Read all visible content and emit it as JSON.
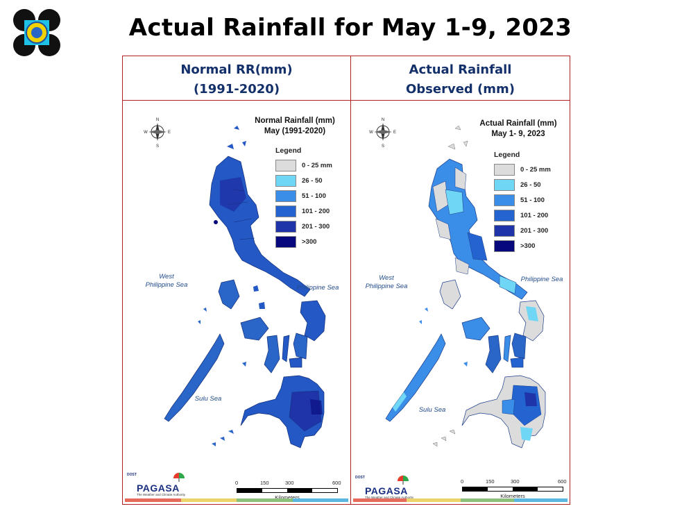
{
  "header": {
    "title": "Actual Rainfall for May 1-9, 2023"
  },
  "legend": {
    "title": "Legend",
    "items": [
      {
        "label": "0 - 25 mm",
        "color": "#dcdcdc"
      },
      {
        "label": "26 - 50",
        "color": "#6fd6f5"
      },
      {
        "label": "51 - 100",
        "color": "#3b8ee8"
      },
      {
        "label": "101 - 200",
        "color": "#2464d0"
      },
      {
        "label": "201 - 300",
        "color": "#1e34a8"
      },
      {
        "label": ">300",
        "color": "#07087c"
      }
    ]
  },
  "panels": {
    "normal": {
      "header_line1": "Normal RR(mm)",
      "header_line2": "(1991-2020)",
      "map_title_line1": "Normal Rainfall (mm)",
      "map_title_line2": "May (1991-2020)"
    },
    "actual": {
      "header_line1": "Actual Rainfall",
      "header_line2": "Observed (mm)",
      "map_title_line1": "Actual Rainfall (mm)",
      "map_title_line2": "May 1- 9, 2023"
    }
  },
  "seas": {
    "west_line1": "West",
    "west_line2": "Philippine Sea",
    "east": "Philippine Sea",
    "south": "Sulu Sea"
  },
  "compass": {
    "n": "N",
    "s": "S",
    "e": "E",
    "w": "W"
  },
  "scale": {
    "ticks": [
      "0",
      "150",
      "300",
      "600"
    ],
    "unit": "Kilometers"
  },
  "branding": {
    "dost": "DOST",
    "name": "PAGASA",
    "tagline": "The Weather and Climate Authority"
  }
}
